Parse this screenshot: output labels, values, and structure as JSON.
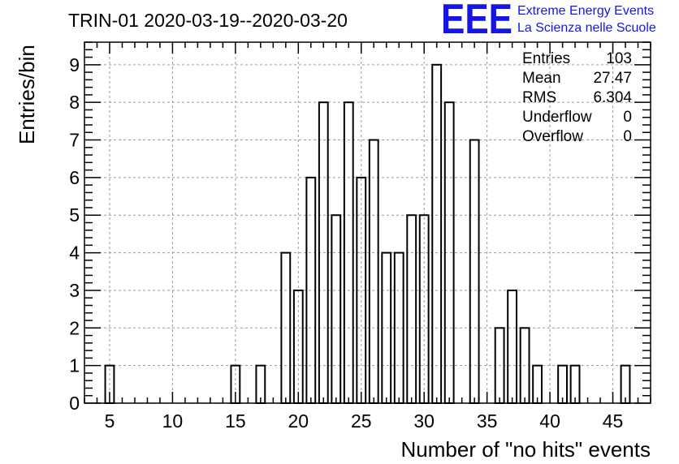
{
  "chart_data": {
    "type": "bar",
    "title": "TRIN-01 2020-03-19--2020-03-20",
    "xlabel": "Number of \"no hits\" events",
    "ylabel": "Entries/bin",
    "xlim": [
      3,
      48
    ],
    "ylim": [
      0,
      9.6
    ],
    "x_ticks": [
      5,
      10,
      15,
      20,
      25,
      30,
      35,
      40,
      45
    ],
    "y_ticks": [
      0,
      1,
      2,
      3,
      4,
      5,
      6,
      7,
      8,
      9
    ],
    "grid": true,
    "bin_width": 0.7,
    "bins": [
      {
        "x": 5,
        "y": 1
      },
      {
        "x": 15,
        "y": 1
      },
      {
        "x": 17,
        "y": 1
      },
      {
        "x": 19,
        "y": 4
      },
      {
        "x": 20,
        "y": 3
      },
      {
        "x": 21,
        "y": 6
      },
      {
        "x": 22,
        "y": 8
      },
      {
        "x": 23,
        "y": 5
      },
      {
        "x": 24,
        "y": 8
      },
      {
        "x": 25,
        "y": 6
      },
      {
        "x": 26,
        "y": 7
      },
      {
        "x": 27,
        "y": 4
      },
      {
        "x": 28,
        "y": 4
      },
      {
        "x": 29,
        "y": 5
      },
      {
        "x": 30,
        "y": 5
      },
      {
        "x": 31,
        "y": 9
      },
      {
        "x": 32,
        "y": 8
      },
      {
        "x": 34,
        "y": 7
      },
      {
        "x": 36,
        "y": 2
      },
      {
        "x": 37,
        "y": 3
      },
      {
        "x": 38,
        "y": 2
      },
      {
        "x": 39,
        "y": 1
      },
      {
        "x": 41,
        "y": 1
      },
      {
        "x": 42,
        "y": 1
      },
      {
        "x": 46,
        "y": 1
      }
    ],
    "stats": [
      {
        "label": "Entries",
        "value": "103"
      },
      {
        "label": "Mean",
        "value": "27.47"
      },
      {
        "label": "RMS",
        "value": "6.304"
      },
      {
        "label": "Underflow",
        "value": "0"
      },
      {
        "label": "Overflow",
        "value": "0"
      }
    ]
  },
  "logo": {
    "mark": "EEE",
    "line1": "Extreme Energy Events",
    "line2": "La Scienza nelle Scuole",
    "color": "#1515e8"
  }
}
